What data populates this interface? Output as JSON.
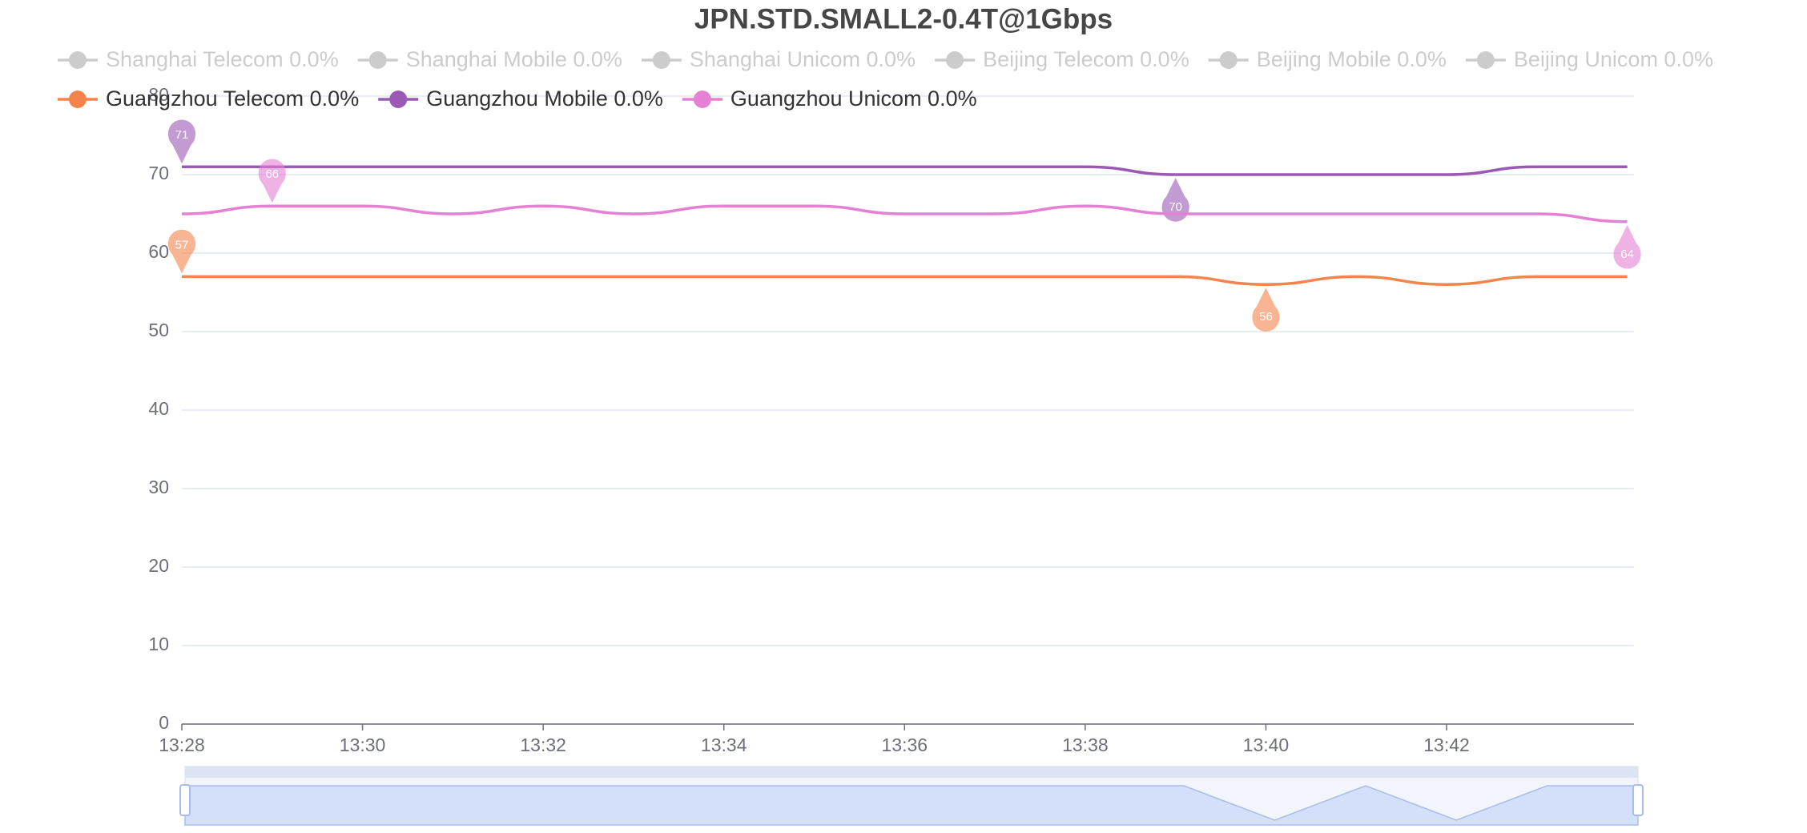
{
  "chart_data": {
    "type": "line",
    "title": "JPN.STD.SMALL2-0.4T@1Gbps",
    "x": [
      "13:28",
      null,
      "13:30",
      null,
      "13:32",
      null,
      "13:34",
      null,
      "13:36",
      null,
      "13:38",
      null,
      "13:40",
      null,
      "13:42",
      null,
      null
    ],
    "hidden_series": [
      "Shanghai Telecom 0.0%",
      "Shanghai Mobile 0.0%",
      "Shanghai Unicom 0.0%",
      "Beijing Telecom 0.0%",
      "Beijing Mobile 0.0%",
      "Beijing Unicom 0.0%"
    ],
    "series": [
      {
        "name": "Guangzhou Telecom 0.0%",
        "color": "#f5844c",
        "values": [
          57,
          57,
          57,
          57,
          57,
          57,
          57,
          57,
          57,
          57,
          57,
          57,
          56,
          57,
          56,
          57,
          57
        ]
      },
      {
        "name": "Guangzhou Mobile 0.0%",
        "color": "#9b59b6",
        "values": [
          71,
          71,
          71,
          71,
          71,
          71,
          71,
          71,
          71,
          71,
          71,
          70,
          70,
          70,
          70,
          71,
          71
        ]
      },
      {
        "name": "Guangzhou Unicom 0.0%",
        "color": "#e680d4",
        "values": [
          65,
          66,
          66,
          65,
          66,
          65,
          66,
          66,
          65,
          65,
          66,
          65,
          65,
          65,
          65,
          65,
          64
        ]
      }
    ],
    "ylim": [
      0,
      80
    ],
    "yticks": [
      0,
      10,
      20,
      30,
      40,
      50,
      60,
      70,
      80
    ],
    "grid": true
  }
}
